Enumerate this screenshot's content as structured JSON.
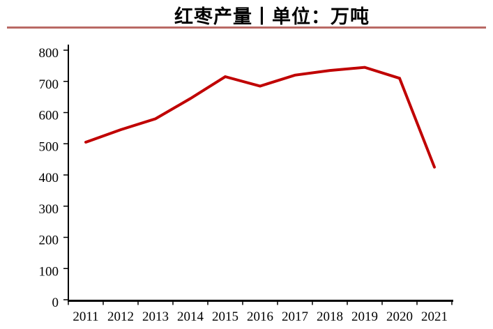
{
  "header": {
    "title": "红枣产量丨单位：万吨"
  },
  "style": {
    "divider_color": "#B96964",
    "line_color": "#C00000",
    "axis_color": "#000000"
  },
  "chart_data": {
    "type": "line",
    "title": "红枣产量丨单位：万吨",
    "categories": [
      "2011",
      "2012",
      "2013",
      "2014",
      "2015",
      "2016",
      "2017",
      "2018",
      "2019",
      "2020",
      "2021"
    ],
    "series": [
      {
        "name": "红枣产量",
        "color": "#C00000",
        "values": [
          505,
          545,
          580,
          645,
          715,
          685,
          720,
          735,
          745,
          710,
          425
        ]
      }
    ],
    "xlabel": "",
    "ylabel": "",
    "ylim": [
      0,
      800
    ],
    "ytick_step": 100,
    "grid": false,
    "legend": "none"
  }
}
